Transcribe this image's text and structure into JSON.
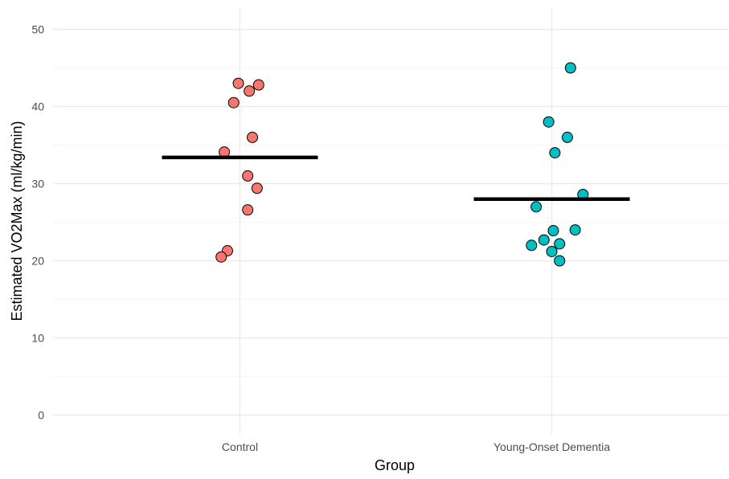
{
  "chart_data": {
    "type": "scatter",
    "title": "",
    "xlabel": "Group",
    "ylabel": "Estimated VO2Max (ml/kg/min)",
    "ylim": [
      -2.5,
      52.5
    ],
    "yticks": [
      0,
      10,
      20,
      30,
      40,
      50
    ],
    "categories": [
      "Control",
      "Young-Onset Dementia"
    ],
    "grid": true,
    "legend": "none",
    "series": [
      {
        "category": "Control",
        "color": "#F8766D",
        "mean": 33.4,
        "points": [
          {
            "jitter": -0.005,
            "y": 43.0
          },
          {
            "jitter": 0.03,
            "y": 42.0
          },
          {
            "jitter": 0.06,
            "y": 42.8
          },
          {
            "jitter": -0.02,
            "y": 40.5
          },
          {
            "jitter": 0.04,
            "y": 36.0
          },
          {
            "jitter": -0.05,
            "y": 34.1
          },
          {
            "jitter": 0.025,
            "y": 31.0
          },
          {
            "jitter": 0.055,
            "y": 29.4
          },
          {
            "jitter": 0.025,
            "y": 26.6
          },
          {
            "jitter": -0.04,
            "y": 21.3
          },
          {
            "jitter": -0.06,
            "y": 20.5
          }
        ]
      },
      {
        "category": "Young-Onset Dementia",
        "color": "#00BFC4",
        "mean": 28.0,
        "points": [
          {
            "jitter": 0.06,
            "y": 45.0
          },
          {
            "jitter": -0.01,
            "y": 38.0
          },
          {
            "jitter": 0.05,
            "y": 36.0
          },
          {
            "jitter": 0.01,
            "y": 34.0
          },
          {
            "jitter": 0.1,
            "y": 28.6
          },
          {
            "jitter": -0.05,
            "y": 27.0
          },
          {
            "jitter": 0.075,
            "y": 24.0
          },
          {
            "jitter": 0.005,
            "y": 23.9
          },
          {
            "jitter": -0.025,
            "y": 22.7
          },
          {
            "jitter": 0.025,
            "y": 22.2
          },
          {
            "jitter": -0.065,
            "y": 22.0
          },
          {
            "jitter": 0.0,
            "y": 21.2
          },
          {
            "jitter": 0.025,
            "y": 20.0
          }
        ]
      }
    ]
  }
}
